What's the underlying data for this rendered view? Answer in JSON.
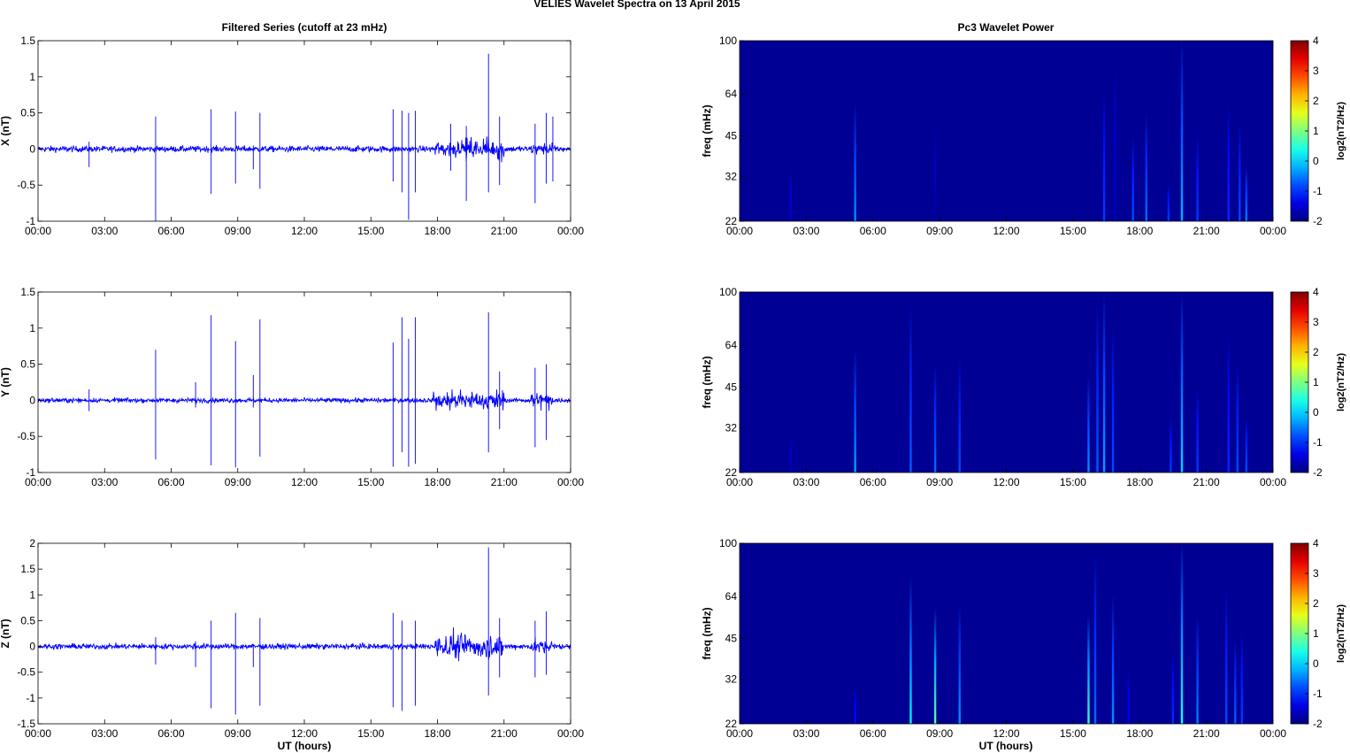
{
  "figure": {
    "title": "VELIES Wavelet Spectra on 13 April     2015",
    "left_title": "Filtered Series (cutoff at 23 mHz)",
    "right_title": "Pc3 Wavelet Power",
    "xlabel": "UT (hours)"
  },
  "chart_data": [
    {
      "type": "line",
      "component": "X",
      "ylabel": "X (nT)",
      "ylim": [
        -1,
        1.5
      ],
      "yticks": [
        "-1",
        "-0.5",
        "0",
        "0.5",
        "1",
        "1.5"
      ],
      "xticks": [
        "00:00",
        "03:00",
        "06:00",
        "09:00",
        "12:00",
        "15:00",
        "18:00",
        "21:00",
        "00:00"
      ],
      "xlim_hours": [
        0,
        24
      ],
      "color": "#0000ff",
      "baseline_noise": 0.04,
      "active_intervals": [
        {
          "start": 17.9,
          "end": 21.0,
          "amp": 0.12
        },
        {
          "start": 22.2,
          "end": 23.2,
          "amp": 0.08
        }
      ],
      "spikes": [
        {
          "t": 2.3,
          "max": 0.1,
          "min": -0.25
        },
        {
          "t": 5.3,
          "max": 0.45,
          "min": -1.0
        },
        {
          "t": 7.8,
          "max": 0.55,
          "min": -0.62
        },
        {
          "t": 8.9,
          "max": 0.52,
          "min": -0.48
        },
        {
          "t": 10.0,
          "max": 0.5,
          "min": -0.55
        },
        {
          "t": 9.7,
          "max": 0.05,
          "min": -0.28
        },
        {
          "t": 16.0,
          "max": 0.55,
          "min": -0.45
        },
        {
          "t": 16.4,
          "max": 0.53,
          "min": -0.6
        },
        {
          "t": 16.7,
          "max": 0.5,
          "min": -0.98
        },
        {
          "t": 17.0,
          "max": 0.53,
          "min": -0.6
        },
        {
          "t": 18.6,
          "max": 0.35,
          "min": -0.3
        },
        {
          "t": 19.3,
          "max": 0.32,
          "min": -0.72
        },
        {
          "t": 20.3,
          "max": 1.32,
          "min": -0.6
        },
        {
          "t": 20.8,
          "max": 0.45,
          "min": -0.5
        },
        {
          "t": 22.4,
          "max": 0.35,
          "min": -0.75
        },
        {
          "t": 22.9,
          "max": 0.5,
          "min": -0.48
        },
        {
          "t": 23.2,
          "max": 0.45,
          "min": -0.45
        }
      ]
    },
    {
      "type": "line",
      "component": "Y",
      "ylabel": "Y (nT)",
      "ylim": [
        -1,
        1.5
      ],
      "yticks": [
        "-1",
        "-0.5",
        "0",
        "0.5",
        "1",
        "1.5"
      ],
      "xticks": [
        "00:00",
        "03:00",
        "06:00",
        "09:00",
        "12:00",
        "15:00",
        "18:00",
        "21:00",
        "00:00"
      ],
      "xlim_hours": [
        0,
        24
      ],
      "color": "#0000ff",
      "baseline_noise": 0.03,
      "active_intervals": [
        {
          "start": 17.8,
          "end": 21.0,
          "amp": 0.12
        },
        {
          "start": 22.2,
          "end": 23.2,
          "amp": 0.1
        }
      ],
      "spikes": [
        {
          "t": 2.3,
          "max": 0.15,
          "min": -0.15
        },
        {
          "t": 5.3,
          "max": 0.7,
          "min": -0.82
        },
        {
          "t": 7.1,
          "max": 0.25,
          "min": -0.1
        },
        {
          "t": 7.8,
          "max": 1.18,
          "min": -0.9
        },
        {
          "t": 8.9,
          "max": 0.82,
          "min": -0.93
        },
        {
          "t": 9.7,
          "max": 0.35,
          "min": -0.1
        },
        {
          "t": 10.0,
          "max": 1.12,
          "min": -0.78
        },
        {
          "t": 16.0,
          "max": 0.8,
          "min": -0.92
        },
        {
          "t": 16.4,
          "max": 1.15,
          "min": -0.72
        },
        {
          "t": 16.7,
          "max": 0.85,
          "min": -0.92
        },
        {
          "t": 17.0,
          "max": 1.15,
          "min": -0.88
        },
        {
          "t": 20.3,
          "max": 1.22,
          "min": -0.72
        },
        {
          "t": 20.8,
          "max": 0.4,
          "min": -0.4
        },
        {
          "t": 22.4,
          "max": 0.45,
          "min": -0.65
        },
        {
          "t": 22.9,
          "max": 0.5,
          "min": -0.55
        }
      ]
    },
    {
      "type": "line",
      "component": "Z",
      "ylabel": "Z (nT)",
      "ylim": [
        -1.5,
        2
      ],
      "yticks": [
        "-1.5",
        "-1",
        "-0.5",
        "0",
        "0.5",
        "1",
        "1.5",
        "2"
      ],
      "xticks": [
        "00:00",
        "03:00",
        "06:00",
        "09:00",
        "12:00",
        "15:00",
        "18:00",
        "21:00",
        "00:00"
      ],
      "xlim_hours": [
        0,
        24
      ],
      "color": "#0000ff",
      "baseline_noise": 0.05,
      "active_intervals": [
        {
          "start": 17.9,
          "end": 21.0,
          "amp": 0.22
        },
        {
          "start": 22.2,
          "end": 23.2,
          "amp": 0.12
        }
      ],
      "spikes": [
        {
          "t": 5.3,
          "max": 0.18,
          "min": -0.35
        },
        {
          "t": 7.1,
          "max": 0.1,
          "min": -0.4
        },
        {
          "t": 7.8,
          "max": 0.5,
          "min": -1.2
        },
        {
          "t": 8.9,
          "max": 0.65,
          "min": -1.32
        },
        {
          "t": 9.7,
          "max": 0.05,
          "min": -0.4
        },
        {
          "t": 10.0,
          "max": 0.55,
          "min": -1.15
        },
        {
          "t": 16.0,
          "max": 0.65,
          "min": -1.18
        },
        {
          "t": 16.4,
          "max": 0.5,
          "min": -1.25
        },
        {
          "t": 17.0,
          "max": 0.5,
          "min": -1.15
        },
        {
          "t": 20.3,
          "max": 1.92,
          "min": -0.95
        },
        {
          "t": 20.8,
          "max": 0.55,
          "min": -0.6
        },
        {
          "t": 22.4,
          "max": 0.5,
          "min": -0.6
        },
        {
          "t": 22.9,
          "max": 0.68,
          "min": -0.55
        }
      ]
    },
    {
      "type": "heatmap",
      "component": "X",
      "ylabel": "freq (mHz)",
      "yticks": [
        "22",
        "32",
        "45",
        "64",
        "100"
      ],
      "ylim_mHz": [
        22,
        100
      ],
      "yscale": "log",
      "xticks": [
        "00:00",
        "03:00",
        "06:00",
        "09:00",
        "12:00",
        "15:00",
        "18:00",
        "21:00",
        "00:00"
      ],
      "xlim_hours": [
        0,
        24
      ],
      "colorbar_label": "log2(nT2/Hz)",
      "colorbar_ticks": [
        "-2",
        "-1",
        "0",
        "1",
        "2",
        "3",
        "4"
      ],
      "clim": [
        -2,
        4
      ],
      "background_level": -2,
      "streaks": [
        {
          "t": 2.3,
          "fmax": 35,
          "peak": -1.6
        },
        {
          "t": 5.2,
          "fmax": 60,
          "peak": -0.4
        },
        {
          "t": 8.8,
          "fmax": 50,
          "peak": -1.8
        },
        {
          "t": 16.4,
          "fmax": 65,
          "peak": -0.9
        },
        {
          "t": 16.9,
          "fmax": 85,
          "peak": -1.6
        },
        {
          "t": 17.7,
          "fmax": 45,
          "peak": -0.8
        },
        {
          "t": 18.3,
          "fmax": 55,
          "peak": -0.6
        },
        {
          "t": 19.3,
          "fmax": 30,
          "peak": -0.9
        },
        {
          "t": 19.9,
          "fmax": 100,
          "peak": -0.2
        },
        {
          "t": 20.6,
          "fmax": 45,
          "peak": -0.9
        },
        {
          "t": 22.0,
          "fmax": 60,
          "peak": -1.0
        },
        {
          "t": 22.5,
          "fmax": 50,
          "peak": -0.8
        },
        {
          "t": 22.8,
          "fmax": 35,
          "peak": -0.5
        }
      ]
    },
    {
      "type": "heatmap",
      "component": "Y",
      "ylabel": "freq (mHz)",
      "yticks": [
        "22",
        "32",
        "45",
        "64",
        "100"
      ],
      "ylim_mHz": [
        22,
        100
      ],
      "yscale": "log",
      "xticks": [
        "00:00",
        "03:00",
        "06:00",
        "09:00",
        "12:00",
        "15:00",
        "18:00",
        "21:00",
        "00:00"
      ],
      "xlim_hours": [
        0,
        24
      ],
      "colorbar_label": "log2(nT2/Hz)",
      "colorbar_ticks": [
        "-2",
        "-1",
        "0",
        "1",
        "2",
        "3",
        "4"
      ],
      "clim": [
        -2,
        4
      ],
      "background_level": -2,
      "streaks": [
        {
          "t": 2.3,
          "fmax": 30,
          "peak": -1.7
        },
        {
          "t": 5.2,
          "fmax": 62,
          "peak": -0.3
        },
        {
          "t": 7.7,
          "fmax": 90,
          "peak": -0.7
        },
        {
          "t": 8.8,
          "fmax": 55,
          "peak": -0.6
        },
        {
          "t": 9.9,
          "fmax": 58,
          "peak": -0.8
        },
        {
          "t": 15.7,
          "fmax": 50,
          "peak": -0.4
        },
        {
          "t": 16.1,
          "fmax": 90,
          "peak": -0.7
        },
        {
          "t": 16.4,
          "fmax": 100,
          "peak": -0.3
        },
        {
          "t": 16.8,
          "fmax": 75,
          "peak": -0.8
        },
        {
          "t": 19.4,
          "fmax": 35,
          "peak": -0.9
        },
        {
          "t": 19.9,
          "fmax": 100,
          "peak": 0.0
        },
        {
          "t": 20.6,
          "fmax": 45,
          "peak": -0.9
        },
        {
          "t": 22.0,
          "fmax": 70,
          "peak": -1.0
        },
        {
          "t": 22.4,
          "fmax": 55,
          "peak": -0.8
        },
        {
          "t": 22.8,
          "fmax": 35,
          "peak": -0.8
        }
      ]
    },
    {
      "type": "heatmap",
      "component": "Z",
      "ylabel": "freq (mHz)",
      "yticks": [
        "22",
        "32",
        "45",
        "64",
        "100"
      ],
      "ylim_mHz": [
        22,
        100
      ],
      "yscale": "log",
      "xticks": [
        "00:00",
        "03:00",
        "06:00",
        "09:00",
        "12:00",
        "15:00",
        "18:00",
        "21:00",
        "00:00"
      ],
      "xlim_hours": [
        0,
        24
      ],
      "colorbar_label": "log2(nT2/Hz)",
      "colorbar_ticks": [
        "-2",
        "-1",
        "0",
        "1",
        "2",
        "3",
        "4"
      ],
      "clim": [
        -2,
        4
      ],
      "background_level": -2,
      "streaks": [
        {
          "t": 5.2,
          "fmax": 30,
          "peak": -1.2
        },
        {
          "t": 7.7,
          "fmax": 75,
          "peak": 0.2
        },
        {
          "t": 8.8,
          "fmax": 58,
          "peak": 0.8
        },
        {
          "t": 9.9,
          "fmax": 60,
          "peak": -0.4
        },
        {
          "t": 15.7,
          "fmax": 55,
          "peak": 0.6
        },
        {
          "t": 16.0,
          "fmax": 90,
          "peak": -0.6
        },
        {
          "t": 16.8,
          "fmax": 65,
          "peak": -0.4
        },
        {
          "t": 17.5,
          "fmax": 35,
          "peak": -1.4
        },
        {
          "t": 19.5,
          "fmax": 40,
          "peak": -1.0
        },
        {
          "t": 19.9,
          "fmax": 100,
          "peak": 0.4
        },
        {
          "t": 20.6,
          "fmax": 55,
          "peak": -0.5
        },
        {
          "t": 21.9,
          "fmax": 68,
          "peak": -0.8
        },
        {
          "t": 22.3,
          "fmax": 45,
          "peak": -0.7
        },
        {
          "t": 22.6,
          "fmax": 48,
          "peak": -0.9
        }
      ]
    }
  ]
}
